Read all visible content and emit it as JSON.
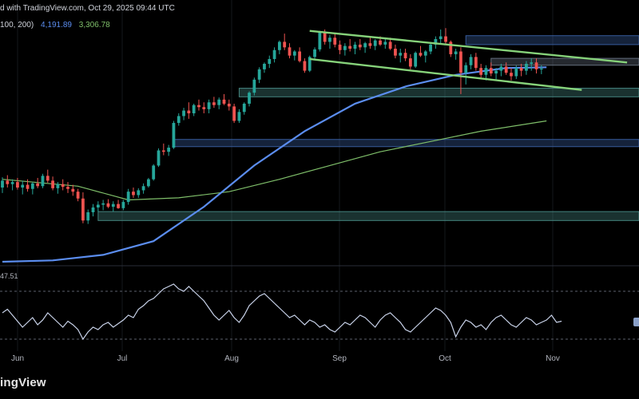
{
  "header": {
    "text": "d with TradingView.com, Oct 29, 2025 09:44 UTC"
  },
  "ma_legend": {
    "params": "100, 200)",
    "ma100_value": "4,191.89",
    "ma200_value": "3,306.78",
    "ma100_color": "#5b8def",
    "ma200_color": "#7fbf6a"
  },
  "rsi": {
    "value_label": "47.51"
  },
  "x_axis": {
    "labels": [
      "Jun",
      "Jul",
      "Aug",
      "Sep",
      "Oct",
      "Nov"
    ]
  },
  "watermark": {
    "text": "ingView"
  },
  "colors": {
    "up": "#26a69a",
    "down": "#ef5350",
    "channel": "#86d27a",
    "zone_teal": "#4a8f8a",
    "zone_blue": "#3b63a8",
    "zone_gray": "#6b7686",
    "rsi_line": "#c9d3ea"
  },
  "chart_data": {
    "type": "candlestick",
    "price_range": [
      1400,
      5000
    ],
    "candle_range": [
      0,
      113
    ],
    "candles_ohlc": [
      [
        2480,
        2630,
        2400,
        2580
      ],
      [
        2580,
        2660,
        2480,
        2530
      ],
      [
        2530,
        2600,
        2440,
        2560
      ],
      [
        2560,
        2620,
        2450,
        2480
      ],
      [
        2480,
        2580,
        2380,
        2520
      ],
      [
        2520,
        2600,
        2420,
        2460
      ],
      [
        2460,
        2560,
        2380,
        2540
      ],
      [
        2540,
        2620,
        2470,
        2500
      ],
      [
        2500,
        2680,
        2470,
        2650
      ],
      [
        2650,
        2740,
        2550,
        2580
      ],
      [
        2580,
        2640,
        2440,
        2470
      ],
      [
        2470,
        2560,
        2390,
        2530
      ],
      [
        2530,
        2600,
        2440,
        2490
      ],
      [
        2490,
        2560,
        2400,
        2460
      ],
      [
        2460,
        2520,
        2360,
        2420
      ],
      [
        2420,
        2460,
        2280,
        2320
      ],
      [
        2320,
        2410,
        1960,
        2000
      ],
      [
        2000,
        2160,
        1950,
        2120
      ],
      [
        2120,
        2240,
        2060,
        2190
      ],
      [
        2190,
        2280,
        2130,
        2230
      ],
      [
        2230,
        2300,
        2150,
        2250
      ],
      [
        2250,
        2310,
        2180,
        2200
      ],
      [
        2200,
        2280,
        2130,
        2240
      ],
      [
        2240,
        2300,
        2170,
        2180
      ],
      [
        2180,
        2300,
        2150,
        2270
      ],
      [
        2270,
        2460,
        2230,
        2420
      ],
      [
        2420,
        2480,
        2330,
        2370
      ],
      [
        2370,
        2470,
        2330,
        2440
      ],
      [
        2440,
        2540,
        2390,
        2500
      ],
      [
        2500,
        2620,
        2480,
        2600
      ],
      [
        2600,
        2820,
        2580,
        2800
      ],
      [
        2800,
        3050,
        2780,
        3020
      ],
      [
        3020,
        3120,
        2950,
        3000
      ],
      [
        3000,
        3100,
        2940,
        3060
      ],
      [
        3060,
        3450,
        3040,
        3420
      ],
      [
        3420,
        3560,
        3380,
        3520
      ],
      [
        3520,
        3640,
        3460,
        3600
      ],
      [
        3600,
        3720,
        3480,
        3560
      ],
      [
        3560,
        3700,
        3520,
        3680
      ],
      [
        3680,
        3760,
        3600,
        3650
      ],
      [
        3650,
        3720,
        3560,
        3620
      ],
      [
        3620,
        3760,
        3560,
        3720
      ],
      [
        3720,
        3800,
        3640,
        3680
      ],
      [
        3680,
        3790,
        3620,
        3760
      ],
      [
        3760,
        3840,
        3680,
        3700
      ],
      [
        3700,
        3760,
        3600,
        3660
      ],
      [
        3660,
        3700,
        3420,
        3450
      ],
      [
        3450,
        3620,
        3420,
        3580
      ],
      [
        3580,
        3720,
        3540,
        3700
      ],
      [
        3700,
        3880,
        3660,
        3860
      ],
      [
        3860,
        4080,
        3820,
        4050
      ],
      [
        4050,
        4230,
        4000,
        4200
      ],
      [
        4200,
        4300,
        4150,
        4280
      ],
      [
        4280,
        4400,
        4220,
        4350
      ],
      [
        4350,
        4520,
        4300,
        4480
      ],
      [
        4480,
        4620,
        4420,
        4600
      ],
      [
        4600,
        4720,
        4480,
        4520
      ],
      [
        4520,
        4580,
        4360,
        4400
      ],
      [
        4400,
        4480,
        4330,
        4460
      ],
      [
        4460,
        4520,
        4300,
        4320
      ],
      [
        4320,
        4360,
        4150,
        4180
      ],
      [
        4180,
        4400,
        4160,
        4380
      ],
      [
        4380,
        4520,
        4330,
        4490
      ],
      [
        4490,
        4760,
        4460,
        4740
      ],
      [
        4740,
        4780,
        4560,
        4600
      ],
      [
        4600,
        4700,
        4500,
        4660
      ],
      [
        4660,
        4720,
        4520,
        4560
      ],
      [
        4560,
        4620,
        4420,
        4480
      ],
      [
        4480,
        4580,
        4400,
        4540
      ],
      [
        4540,
        4640,
        4460,
        4500
      ],
      [
        4500,
        4600,
        4420,
        4560
      ],
      [
        4560,
        4640,
        4480,
        4520
      ],
      [
        4520,
        4600,
        4440,
        4580
      ],
      [
        4580,
        4660,
        4500,
        4540
      ],
      [
        4540,
        4640,
        4480,
        4620
      ],
      [
        4620,
        4680,
        4540,
        4560
      ],
      [
        4560,
        4640,
        4500,
        4600
      ],
      [
        4600,
        4660,
        4480,
        4500
      ],
      [
        4500,
        4560,
        4360,
        4400
      ],
      [
        4400,
        4500,
        4300,
        4440
      ],
      [
        4440,
        4500,
        4320,
        4360
      ],
      [
        4360,
        4420,
        4200,
        4240
      ],
      [
        4240,
        4460,
        4220,
        4440
      ],
      [
        4440,
        4540,
        4380,
        4400
      ],
      [
        4400,
        4480,
        4300,
        4460
      ],
      [
        4460,
        4600,
        4420,
        4560
      ],
      [
        4560,
        4680,
        4500,
        4640
      ],
      [
        4640,
        4780,
        4560,
        4680
      ],
      [
        4680,
        4800,
        4560,
        4600
      ],
      [
        4600,
        4620,
        4380,
        4420
      ],
      [
        4420,
        4500,
        4340,
        4460
      ],
      [
        4460,
        4520,
        3840,
        4150
      ],
      [
        4150,
        4300,
        3980,
        4260
      ],
      [
        4260,
        4420,
        4200,
        4380
      ],
      [
        4380,
        4440,
        4180,
        4220
      ],
      [
        4220,
        4280,
        4080,
        4120
      ],
      [
        4120,
        4260,
        4040,
        4220
      ],
      [
        4220,
        4300,
        4100,
        4140
      ],
      [
        4140,
        4220,
        4040,
        4180
      ],
      [
        4180,
        4280,
        4100,
        4240
      ],
      [
        4240,
        4300,
        4120,
        4150
      ],
      [
        4150,
        4220,
        4040,
        4100
      ],
      [
        4100,
        4260,
        4060,
        4220
      ],
      [
        4220,
        4280,
        4100,
        4180
      ],
      [
        4180,
        4320,
        4120,
        4280
      ],
      [
        4280,
        4360,
        4180,
        4300
      ],
      [
        4300,
        4360,
        4140,
        4200
      ],
      [
        4200,
        4260,
        4130,
        4210
      ]
    ],
    "ma100": [
      [
        0,
        1400
      ],
      [
        10,
        1420
      ],
      [
        20,
        1500
      ],
      [
        30,
        1700
      ],
      [
        40,
        2200
      ],
      [
        50,
        2800
      ],
      [
        60,
        3300
      ],
      [
        70,
        3700
      ],
      [
        80,
        3950
      ],
      [
        90,
        4120
      ],
      [
        100,
        4220
      ],
      [
        108,
        4230
      ]
    ],
    "ma200": [
      [
        0,
        2600
      ],
      [
        15,
        2500
      ],
      [
        25,
        2300
      ],
      [
        35,
        2330
      ],
      [
        45,
        2420
      ],
      [
        55,
        2600
      ],
      [
        65,
        2800
      ],
      [
        75,
        3000
      ],
      [
        85,
        3150
      ],
      [
        95,
        3300
      ],
      [
        108,
        3450
      ]
    ],
    "channel_upper": [
      [
        61,
        4760
      ],
      [
        124,
        4300
      ]
    ],
    "channel_lower": [
      [
        61,
        4350
      ],
      [
        115,
        3900
      ]
    ],
    "zones": [
      {
        "from_x": 47,
        "price_top": 3925,
        "price_bottom": 3800,
        "color": "teal"
      },
      {
        "from_x": 34,
        "price_top": 3180,
        "price_bottom": 3075,
        "color": "blue"
      },
      {
        "from_x": 19,
        "price_top": 2130,
        "price_bottom": 2000,
        "color": "teal"
      },
      {
        "from_x": 92,
        "price_top": 4690,
        "price_bottom": 4560,
        "color": "blue"
      },
      {
        "from_x": 97,
        "price_top": 4360,
        "price_bottom": 4260,
        "color": "gray"
      }
    ],
    "rsi_range": [
      20,
      90
    ],
    "rsi_levels": [
      70,
      30
    ],
    "rsi": [
      52,
      55,
      50,
      45,
      40,
      44,
      48,
      42,
      46,
      52,
      48,
      44,
      40,
      45,
      42,
      38,
      30,
      36,
      40,
      38,
      42,
      44,
      40,
      43,
      46,
      50,
      48,
      55,
      58,
      62,
      64,
      68,
      72,
      74,
      76,
      72,
      70,
      74,
      70,
      66,
      62,
      56,
      50,
      46,
      50,
      54,
      48,
      44,
      50,
      58,
      62,
      66,
      68,
      64,
      60,
      56,
      52,
      48,
      50,
      46,
      42,
      46,
      44,
      40,
      42,
      38,
      36,
      40,
      44,
      42,
      46,
      50,
      48,
      44,
      40,
      46,
      50,
      52,
      48,
      44,
      38,
      36,
      40,
      44,
      48,
      52,
      56,
      54,
      50,
      44,
      32,
      40,
      46,
      44,
      40,
      42,
      38,
      44,
      48,
      50,
      46,
      42,
      40,
      44,
      48,
      46,
      42,
      44,
      46,
      50,
      44,
      45
    ]
  }
}
